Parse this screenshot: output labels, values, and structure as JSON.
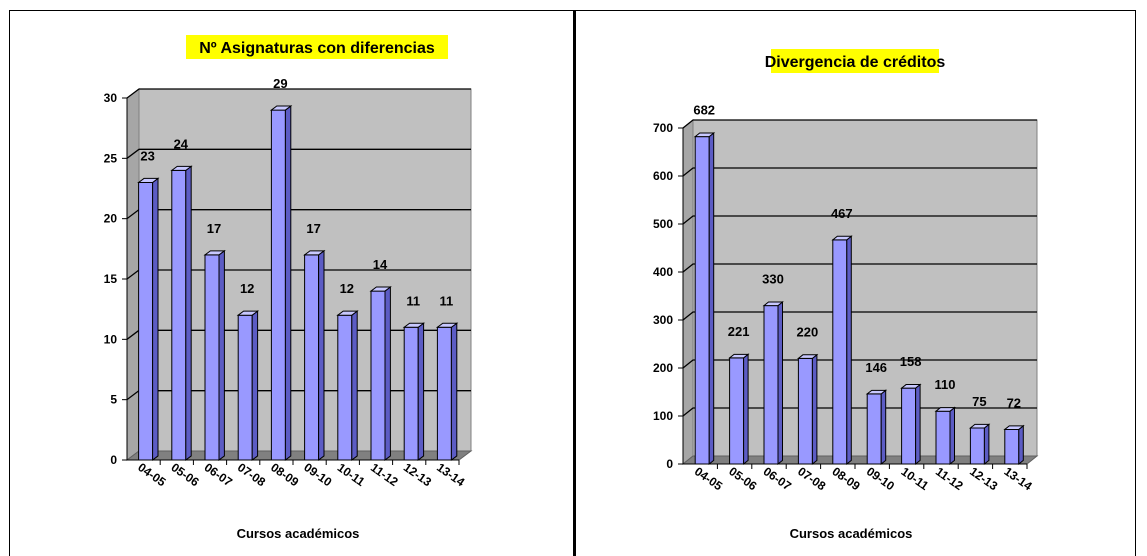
{
  "colors": {
    "bar_front": "#9999ff",
    "bar_top": "#c8c8ff",
    "bar_side": "#5c5cc4",
    "plot_back": "#c0c0c0",
    "plot_floor": "#808080",
    "title_highlight": "#ffff00"
  },
  "chart_data": [
    {
      "type": "bar",
      "title": "Nº Asignaturas con diferencias",
      "xlabel": "Cursos académicos",
      "ylabel": "",
      "categories": [
        "04-05",
        "05-06",
        "06-07",
        "07-08",
        "08-09",
        "09-10",
        "10-11",
        "11-12",
        "12-13",
        "13-14"
      ],
      "values": [
        23,
        24,
        17,
        12,
        29,
        17,
        12,
        14,
        11,
        11
      ],
      "ylim": [
        0,
        30
      ],
      "yticks": [
        0,
        5,
        10,
        15,
        20,
        25,
        30
      ],
      "grid": true,
      "legend": "none"
    },
    {
      "type": "bar",
      "title": "Divergencia de créditos",
      "xlabel": "Cursos académicos",
      "ylabel": "",
      "categories": [
        "04-05",
        "05-06",
        "06-07",
        "07-08",
        "08-09",
        "09-10",
        "10-11",
        "11-12",
        "12-13",
        "13-14"
      ],
      "values": [
        682,
        221,
        330,
        220,
        467,
        146,
        158,
        110,
        75,
        72
      ],
      "ylim": [
        0,
        700
      ],
      "yticks": [
        0,
        100,
        200,
        300,
        400,
        500,
        600,
        700
      ],
      "grid": true,
      "legend": "none"
    }
  ]
}
